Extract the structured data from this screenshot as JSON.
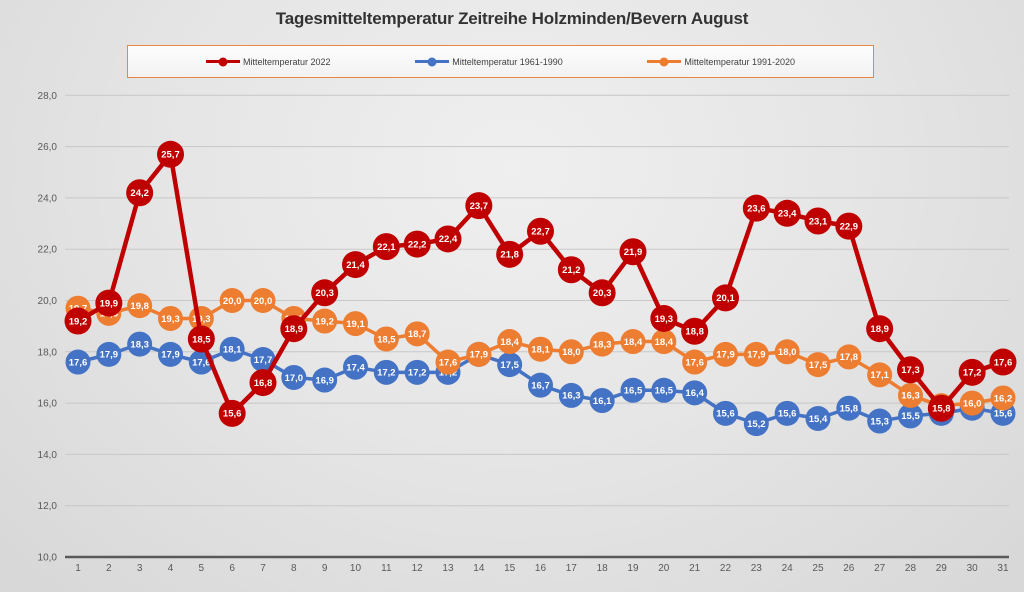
{
  "title": "Tagesmitteltemperatur Zeitreihe Holzminden/Bevern August",
  "legend": {
    "items": [
      {
        "label": "Mitteltemperatur 2022",
        "color": "#c00000"
      },
      {
        "label": "Mitteltemperatur 1961-1990",
        "color": "#4472c4"
      },
      {
        "label": "Mitteltemperatur 1991-2020",
        "color": "#ed7d31"
      }
    ],
    "border_color": "#e8873f"
  },
  "axes": {
    "y_tick_labels": [
      "10,0",
      "12,0",
      "14,0",
      "16,0",
      "18,0",
      "20,0",
      "22,0",
      "24,0",
      "26,0",
      "28,0"
    ],
    "x_tick_labels": [
      "1",
      "2",
      "3",
      "4",
      "5",
      "6",
      "7",
      "8",
      "9",
      "10",
      "11",
      "12",
      "13",
      "14",
      "15",
      "16",
      "17",
      "18",
      "19",
      "20",
      "21",
      "22",
      "23",
      "24",
      "25",
      "26",
      "27",
      "28",
      "29",
      "30",
      "31"
    ]
  },
  "chart_data": {
    "type": "line",
    "title": "Tagesmitteltemperatur Zeitreihe Holzminden/Bevern August",
    "xlabel": "",
    "ylabel": "",
    "x": [
      1,
      2,
      3,
      4,
      5,
      6,
      7,
      8,
      9,
      10,
      11,
      12,
      13,
      14,
      15,
      16,
      17,
      18,
      19,
      20,
      21,
      22,
      23,
      24,
      25,
      26,
      27,
      28,
      29,
      30,
      31
    ],
    "ylim": [
      10,
      28
    ],
    "ytick_step": 2,
    "grid": true,
    "legend_position": "top",
    "decimal_separator": ",",
    "marker_labels": true,
    "series": [
      {
        "name": "Mitteltemperatur 2022",
        "color": "#c00000",
        "values": [
          19.2,
          19.9,
          24.2,
          25.7,
          18.5,
          15.6,
          16.8,
          18.9,
          20.3,
          21.4,
          22.1,
          22.2,
          22.4,
          23.7,
          21.8,
          22.7,
          21.2,
          20.3,
          21.9,
          19.3,
          18.8,
          20.1,
          23.6,
          23.4,
          23.1,
          22.9,
          18.9,
          17.3,
          15.8,
          17.2,
          17.6
        ]
      },
      {
        "name": "Mitteltemperatur 1961-1990",
        "color": "#4472c4",
        "values": [
          17.6,
          17.9,
          18.3,
          17.9,
          17.6,
          18.1,
          17.7,
          17.0,
          16.9,
          17.4,
          17.2,
          17.2,
          17.2,
          17.9,
          17.5,
          16.7,
          16.3,
          16.1,
          16.5,
          16.5,
          16.4,
          15.6,
          15.2,
          15.6,
          15.4,
          15.8,
          15.3,
          15.5,
          15.6,
          15.8,
          15.6
        ]
      },
      {
        "name": "Mitteltemperatur 1991-2020",
        "color": "#ed7d31",
        "values": [
          19.7,
          19.5,
          19.8,
          19.3,
          19.3,
          20.0,
          20.0,
          19.3,
          19.2,
          19.1,
          18.5,
          18.7,
          17.6,
          17.9,
          18.4,
          18.1,
          18.0,
          18.3,
          18.4,
          18.4,
          17.6,
          17.9,
          17.9,
          18.0,
          17.5,
          17.8,
          17.1,
          16.3,
          15.9,
          16.0,
          16.2
        ]
      }
    ]
  }
}
